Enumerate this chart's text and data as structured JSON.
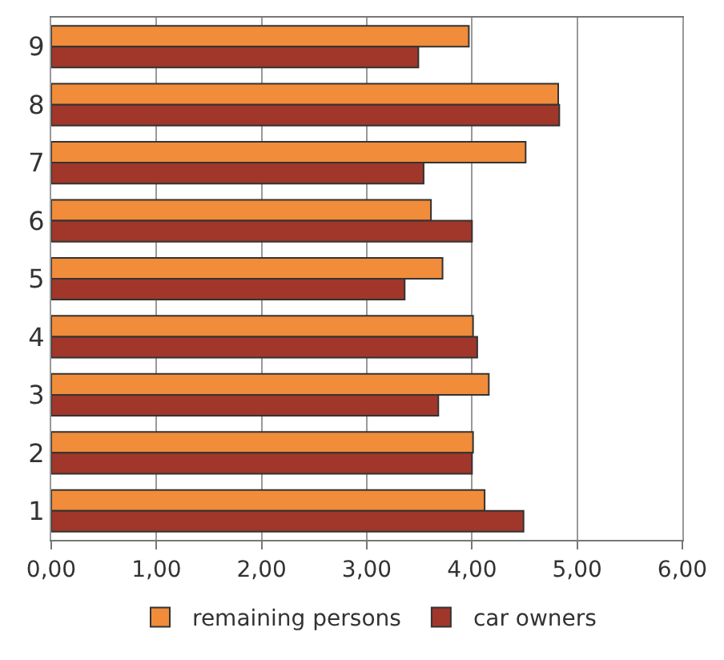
{
  "chart_data": {
    "type": "bar",
    "orientation": "horizontal",
    "categories": [
      "9",
      "8",
      "7",
      "6",
      "5",
      "4",
      "3",
      "2",
      "1"
    ],
    "series": [
      {
        "name": "remaining persons",
        "color": "#f08c3a",
        "values": [
          3.97,
          4.82,
          4.51,
          3.61,
          3.72,
          4.01,
          4.16,
          4.01,
          4.12
        ]
      },
      {
        "name": "car owners",
        "color": "#a0372a",
        "values": [
          3.49,
          4.83,
          3.54,
          4.0,
          3.36,
          4.05,
          3.68,
          4.0,
          4.49
        ]
      }
    ],
    "xlim": [
      0,
      6
    ],
    "xticks": [
      {
        "value": 0,
        "label": "0,00"
      },
      {
        "value": 1,
        "label": "1,00"
      },
      {
        "value": 2,
        "label": "2,00"
      },
      {
        "value": 3,
        "label": "3,00"
      },
      {
        "value": 4,
        "label": "4,00"
      },
      {
        "value": 5,
        "label": "5,00"
      },
      {
        "value": 6,
        "label": "6,00"
      }
    ],
    "grid": "x",
    "legend": "bottom"
  }
}
